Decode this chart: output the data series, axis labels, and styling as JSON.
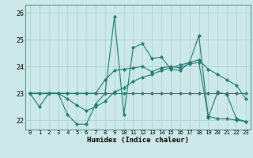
{
  "xlabel": "Humidex (Indice chaleur)",
  "xlim": [
    -0.5,
    23.5
  ],
  "ylim": [
    21.65,
    26.3
  ],
  "yticks": [
    22,
    23,
    24,
    25,
    26
  ],
  "xticks": [
    0,
    1,
    2,
    3,
    4,
    5,
    6,
    7,
    8,
    9,
    10,
    11,
    12,
    13,
    14,
    15,
    16,
    17,
    18,
    19,
    20,
    21,
    22,
    23
  ],
  "bg_color": "#cde8e8",
  "line_color": "#1a7a6e",
  "grid_color": "#aacece",
  "series": [
    [
      23.0,
      22.5,
      23.0,
      23.0,
      22.2,
      21.85,
      21.85,
      22.6,
      23.0,
      25.85,
      22.2,
      24.7,
      24.85,
      24.3,
      24.35,
      23.9,
      23.85,
      24.15,
      25.15,
      22.1,
      23.05,
      22.95,
      22.05,
      21.95
    ],
    [
      23.0,
      23.0,
      23.0,
      23.0,
      23.0,
      23.0,
      23.0,
      23.0,
      23.0,
      23.0,
      23.0,
      23.0,
      23.0,
      23.0,
      23.0,
      23.0,
      23.0,
      23.0,
      23.0,
      23.0,
      23.0,
      23.0,
      23.0,
      23.0
    ],
    [
      23.0,
      23.0,
      23.0,
      23.0,
      23.0,
      23.0,
      23.0,
      23.0,
      23.5,
      23.85,
      23.9,
      23.95,
      24.0,
      23.8,
      23.95,
      24.0,
      23.95,
      24.1,
      24.15,
      22.15,
      22.05,
      22.05,
      22.0,
      21.95
    ],
    [
      23.0,
      23.0,
      23.0,
      23.0,
      22.8,
      22.55,
      22.35,
      22.5,
      22.7,
      23.05,
      23.2,
      23.45,
      23.6,
      23.7,
      23.85,
      23.95,
      24.05,
      24.15,
      24.25,
      23.9,
      23.7,
      23.5,
      23.3,
      22.8
    ]
  ]
}
